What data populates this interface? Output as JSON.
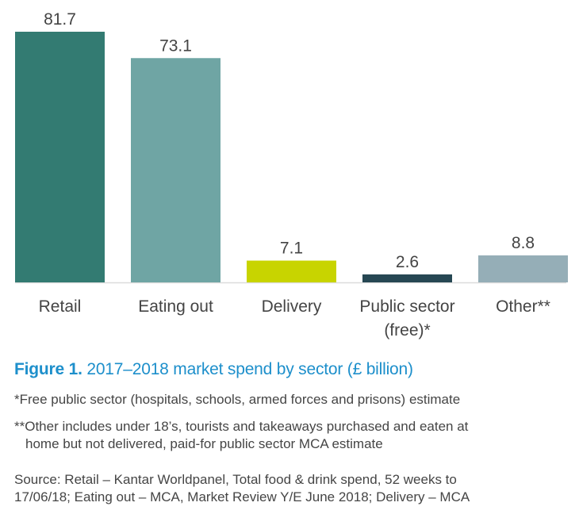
{
  "chart_data": {
    "type": "bar",
    "categories": [
      "Retail",
      "Eating out",
      "Delivery",
      "Public sector (free)*",
      "Other**"
    ],
    "category_lines": [
      [
        "Retail"
      ],
      [
        "Eating out"
      ],
      [
        "Delivery"
      ],
      [
        "Public sector",
        "(free)*"
      ],
      [
        "Other**"
      ]
    ],
    "values": [
      81.7,
      73.1,
      7.1,
      2.6,
      8.8
    ],
    "value_labels": [
      "81.7",
      "73.1",
      "7.1",
      "2.6",
      "8.8"
    ],
    "colors": [
      "#337b72",
      "#6fa5a4",
      "#c8d400",
      "#264753",
      "#95aeb7"
    ],
    "ylim": [
      0,
      81.7
    ],
    "xlabel": "",
    "ylabel": "",
    "grid": false,
    "title": "Figure 1. 2017–2018 market spend by sector (£ billion)"
  },
  "caption": {
    "label": "Figure 1.",
    "text": " 2017–2018 market spend by sector (£ billion)"
  },
  "notes": {
    "free_public": "*Free public sector (hospitals, schools, armed forces and prisons) estimate",
    "other_line1": "**Other includes under 18’s, tourists and takeaways purchased and eaten at",
    "other_line2": "home but not delivered, paid-for public sector MCA estimate",
    "source_line1": "Source: Retail – Kantar Worldpanel, Total food & drink spend, 52 weeks to",
    "source_line2": "17/06/18; Eating out – MCA, Market Review Y/E June 2018; Delivery – MCA"
  }
}
